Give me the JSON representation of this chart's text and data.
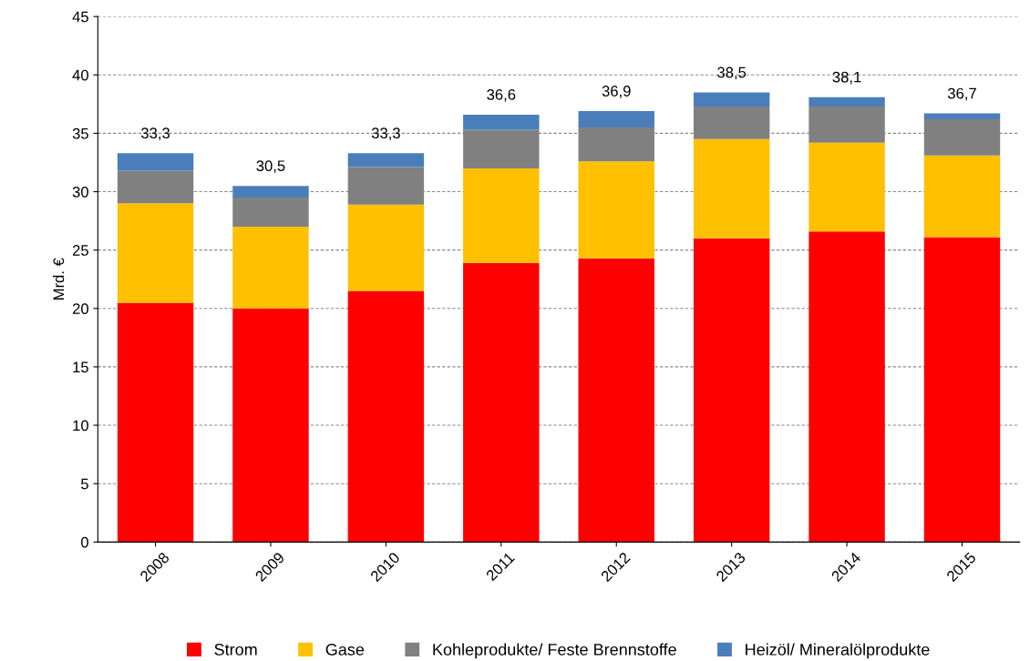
{
  "chart_data": {
    "type": "bar",
    "stacked": true,
    "ylabel": "Mrd. €",
    "categories": [
      "2008",
      "2009",
      "2010",
      "2011",
      "2012",
      "2013",
      "2014",
      "2015"
    ],
    "series": [
      {
        "name": "Strom",
        "color": "#ff0000",
        "values": [
          20.5,
          20.0,
          21.5,
          23.9,
          24.3,
          26.0,
          26.6,
          26.1
        ]
      },
      {
        "name": "Gase",
        "color": "#ffc000",
        "values": [
          8.5,
          7.0,
          7.4,
          8.1,
          8.3,
          8.5,
          7.6,
          7.0
        ]
      },
      {
        "name": "Kohleprodukte/ Feste Brennstoffe",
        "color": "#808080",
        "values": [
          2.8,
          2.5,
          3.2,
          3.3,
          2.9,
          2.8,
          3.1,
          3.1
        ]
      },
      {
        "name": "Heizöl/ Mineralölprodukte",
        "color": "#4a7ebb",
        "values": [
          1.5,
          1.0,
          1.2,
          1.3,
          1.4,
          1.2,
          0.8,
          0.5
        ]
      }
    ],
    "totals": [
      "33,3",
      "30,5",
      "33,3",
      "36,6",
      "36,9",
      "38,5",
      "38,1",
      "36,7"
    ],
    "ylim": [
      0,
      45
    ],
    "yticks": [
      0,
      5,
      10,
      15,
      20,
      25,
      30,
      35,
      40,
      45
    ],
    "grid": "y",
    "legend": "bottom"
  }
}
